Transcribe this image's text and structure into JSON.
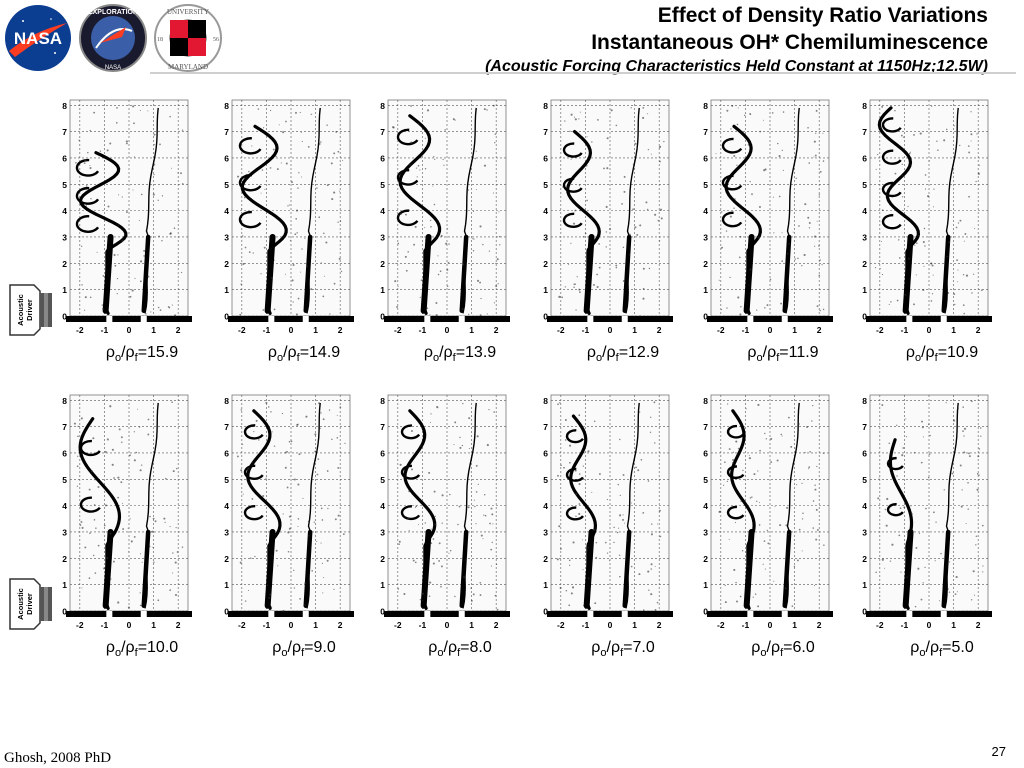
{
  "header": {
    "title_line1": "Effect of Density Ratio Variations",
    "title_line2": "Instantaneous OH* Chemiluminescence",
    "title_line3": "(Acoustic Forcing Characteristics Held Constant at 1150Hz;12.5W)"
  },
  "logos": {
    "nasa": {
      "text": "NASA",
      "color": "#0b3d91",
      "accent": "#fc3d21"
    },
    "exploration": {
      "text_top": "EXPLORATION",
      "text_bottom": "NASA"
    },
    "umd": {
      "text_top": "UNIVERSITY",
      "text_of": "OF",
      "text_bottom": "MARYLAND",
      "y1": "18",
      "y2": "56"
    }
  },
  "driver_label": {
    "line1": "Acoustic",
    "line2": "Driver"
  },
  "axis": {
    "y_ticks": [
      "0",
      "1",
      "2",
      "3",
      "4",
      "5",
      "6",
      "7",
      "8"
    ],
    "x_ticks": [
      "-2",
      "-1",
      "0",
      "1",
      "2"
    ]
  },
  "caption": {
    "rho": "ρ",
    "o": "o",
    "f": "f",
    "slash": "/",
    "eq": "="
  },
  "panels": [
    {
      "ratio": "15.9",
      "coils": 3,
      "top": 6.2,
      "amp": 0.85
    },
    {
      "ratio": "14.9",
      "coils": 3,
      "top": 7.2,
      "amp": 0.8
    },
    {
      "ratio": "13.9",
      "coils": 3,
      "top": 7.6,
      "amp": 0.7
    },
    {
      "ratio": "12.9",
      "coils": 3,
      "top": 7.0,
      "amp": 0.55
    },
    {
      "ratio": "11.9",
      "coils": 3,
      "top": 7.2,
      "amp": 0.6
    },
    {
      "ratio": "10.9",
      "coils": 4,
      "top": 7.9,
      "amp": 0.55
    },
    {
      "ratio": "10.0",
      "coils": 2,
      "top": 7.3,
      "amp": 0.65
    },
    {
      "ratio": "9.0",
      "coils": 3,
      "top": 7.6,
      "amp": 0.55
    },
    {
      "ratio": "8.0",
      "coils": 3,
      "top": 7.6,
      "amp": 0.5
    },
    {
      "ratio": "7.0",
      "coils": 3,
      "top": 7.4,
      "amp": 0.4
    },
    {
      "ratio": "6.0",
      "coils": 3,
      "top": 7.6,
      "amp": 0.35
    },
    {
      "ratio": "5.0",
      "coils": 2,
      "top": 6.5,
      "amp": 0.3
    }
  ],
  "footer": {
    "credit": "Ghosh, 2008 PhD",
    "page": "27"
  }
}
